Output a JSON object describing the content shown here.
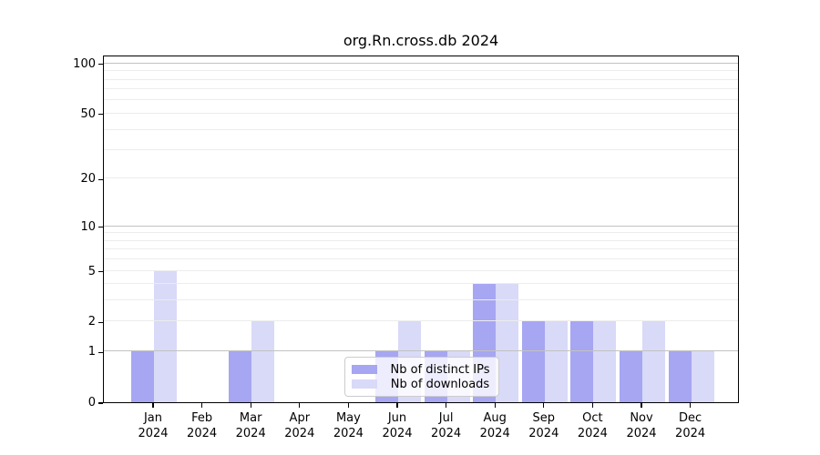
{
  "chart_data": {
    "type": "bar",
    "title": "org.Rn.cross.db 2024",
    "categories": [
      "Jan",
      "Feb",
      "Mar",
      "Apr",
      "May",
      "Jun",
      "Jul",
      "Aug",
      "Sep",
      "Oct",
      "Nov",
      "Dec"
    ],
    "x_tick_second_line": "2024",
    "series": [
      {
        "name": "Nb of distinct IPs",
        "color": "#a6a6f2",
        "values": [
          1,
          0,
          1,
          0,
          0,
          1,
          1,
          4,
          2,
          2,
          1,
          1
        ]
      },
      {
        "name": "Nb of downloads",
        "color": "#d9d9f8",
        "values": [
          5,
          0,
          2,
          0,
          0,
          2,
          1,
          4,
          2,
          2,
          2,
          1
        ]
      }
    ],
    "xlabel": "",
    "ylabel": "",
    "yscale": "log1p",
    "ylim": [
      0,
      113
    ],
    "yticks": [
      0,
      1,
      2,
      5,
      10,
      20,
      50,
      100
    ],
    "grid": {
      "major_lines": [
        1,
        10,
        100
      ],
      "minor_lines": [
        2,
        3,
        4,
        5,
        6,
        7,
        8,
        9,
        20,
        30,
        40,
        50,
        60,
        70,
        80,
        90
      ]
    },
    "legend_position": "lower-center"
  }
}
